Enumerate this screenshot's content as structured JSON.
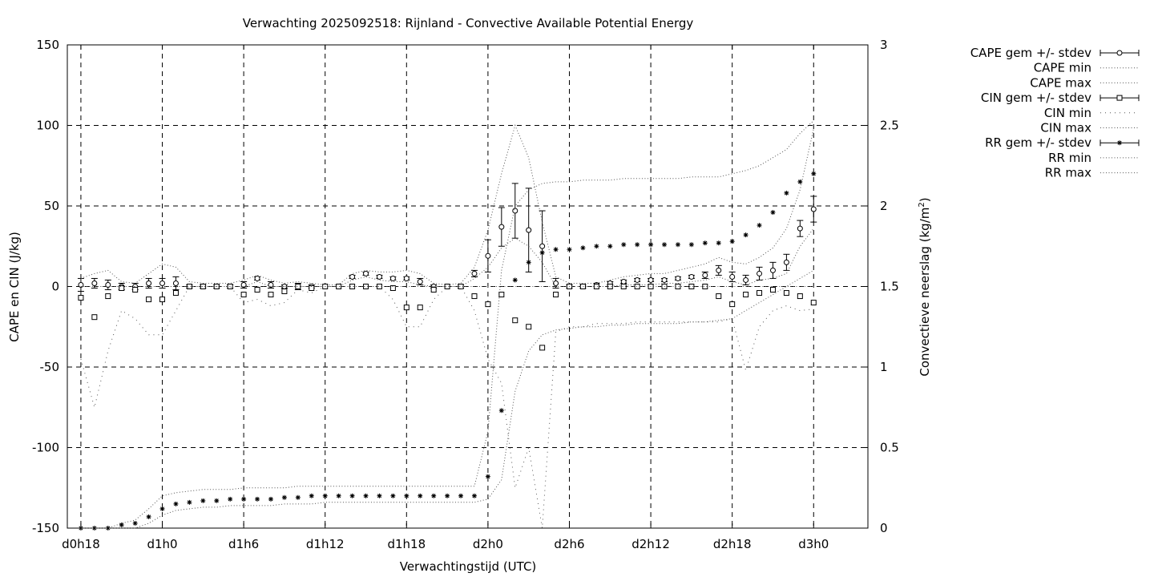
{
  "chart_data": {
    "type": "line",
    "title": "Verwachting 2025092518: Rijnland - Convective Available Potential Energy",
    "xlabel": "Verwachtingstijd (UTC)",
    "ylabel": "CAPE en CIN (J/kg)",
    "y2label_main": "Convectieve neerslag (kg/m",
    "y2label_sup": "2",
    "y2label_end": ")",
    "x_range_hours": [
      -1,
      58
    ],
    "x_ticks": [
      {
        "hour": 0,
        "label": "d0h18"
      },
      {
        "hour": 6,
        "label": "d1h0"
      },
      {
        "hour": 12,
        "label": "d1h6"
      },
      {
        "hour": 18,
        "label": "d1h12"
      },
      {
        "hour": 24,
        "label": "d1h18"
      },
      {
        "hour": 30,
        "label": "d2h0"
      },
      {
        "hour": 36,
        "label": "d2h6"
      },
      {
        "hour": 42,
        "label": "d2h12"
      },
      {
        "hour": 48,
        "label": "d2h18"
      },
      {
        "hour": 54,
        "label": "d3h0"
      }
    ],
    "ylim": [
      -150,
      150
    ],
    "y_ticks": [
      {
        "value": 150,
        "label": "150"
      },
      {
        "value": 100,
        "label": "100"
      },
      {
        "value": 50,
        "label": "50"
      },
      {
        "value": 0,
        "label": "0"
      },
      {
        "value": -50,
        "label": "-50"
      },
      {
        "value": -100,
        "label": "-100"
      },
      {
        "value": -150,
        "label": "-150"
      }
    ],
    "y2lim": [
      0,
      3
    ],
    "y2_ticks": [
      {
        "value": 3,
        "label": "3"
      },
      {
        "value": 2.5,
        "label": "2.5"
      },
      {
        "value": 2,
        "label": "2"
      },
      {
        "value": 1.5,
        "label": "1.5"
      },
      {
        "value": 1,
        "label": "1"
      },
      {
        "value": 0.5,
        "label": "0.5"
      },
      {
        "value": 0,
        "label": "0"
      }
    ],
    "grid": true,
    "legend_position": "outside top-right",
    "legend": [
      {
        "label": "CAPE gem +/- stdev",
        "marker": "circle",
        "style": "errorbar"
      },
      {
        "label": "CAPE min",
        "marker": "none",
        "style": "dotted"
      },
      {
        "label": "CAPE max",
        "marker": "none",
        "style": "dotted"
      },
      {
        "label": "CIN gem +/- stdev",
        "marker": "square",
        "style": "errorbar"
      },
      {
        "label": "CIN min",
        "marker": "none",
        "style": "sparse-dotted"
      },
      {
        "label": "CIN max",
        "marker": "none",
        "style": "dotted"
      },
      {
        "label": "RR gem +/- stdev",
        "marker": "star",
        "style": "errorbar"
      },
      {
        "label": "RR min",
        "marker": "none",
        "style": "dotted"
      },
      {
        "label": "RR max",
        "marker": "none",
        "style": "dotted"
      }
    ],
    "x_hours": [
      0,
      1,
      2,
      3,
      4,
      5,
      6,
      7,
      8,
      9,
      10,
      11,
      12,
      13,
      14,
      15,
      16,
      17,
      18,
      19,
      20,
      21,
      22,
      23,
      24,
      25,
      26,
      27,
      28,
      29,
      30,
      31,
      32,
      33,
      34,
      35,
      36,
      37,
      38,
      39,
      40,
      41,
      42,
      43,
      44,
      45,
      46,
      47,
      48,
      49,
      50,
      51,
      52,
      53,
      54
    ],
    "series": [
      {
        "name": "CAPE gem +/- stdev",
        "axis": "left",
        "marker": "circle",
        "values": [
          1,
          2,
          1,
          0,
          0,
          2,
          2,
          2,
          0,
          0,
          0,
          0,
          1,
          5,
          1,
          0,
          0,
          0,
          0,
          0,
          6,
          8,
          6,
          5,
          5,
          3,
          0,
          0,
          0,
          8,
          19,
          37,
          47,
          35,
          25,
          2,
          0,
          0,
          1,
          2,
          3,
          4,
          4,
          4,
          5,
          6,
          7,
          10,
          6,
          4,
          8,
          10,
          15,
          36,
          48
        ],
        "stdev": [
          4,
          3,
          3,
          2,
          2,
          3,
          3,
          4,
          1,
          1,
          1,
          1,
          2,
          1,
          2,
          1,
          2,
          1,
          0,
          0,
          1,
          1,
          1,
          1,
          1,
          2,
          1,
          0,
          1,
          2,
          10,
          12,
          17,
          26,
          22,
          3,
          1,
          1,
          1,
          1,
          1,
          1,
          1,
          1,
          1,
          1,
          2,
          3,
          3,
          3,
          4,
          5,
          5,
          5,
          8
        ]
      },
      {
        "name": "CAPE min",
        "axis": "left",
        "style": "dotted",
        "values": [
          0,
          0,
          0,
          0,
          0,
          0,
          0,
          0,
          0,
          0,
          0,
          0,
          0,
          3,
          0,
          0,
          0,
          0,
          0,
          0,
          4,
          6,
          4,
          3,
          3,
          1,
          0,
          0,
          0,
          5,
          12,
          24,
          30,
          25,
          15,
          0,
          0,
          0,
          0,
          0,
          1,
          1,
          1,
          2,
          2,
          3,
          4,
          6,
          3,
          1,
          4,
          5,
          8,
          25,
          36
        ]
      },
      {
        "name": "CAPE max",
        "axis": "left",
        "style": "dotted",
        "values": [
          5,
          8,
          10,
          3,
          2,
          8,
          14,
          12,
          3,
          2,
          2,
          2,
          4,
          7,
          4,
          2,
          3,
          2,
          1,
          1,
          8,
          10,
          9,
          9,
          10,
          8,
          2,
          1,
          2,
          12,
          35,
          70,
          100,
          80,
          40,
          6,
          2,
          2,
          2,
          4,
          6,
          7,
          8,
          8,
          10,
          12,
          14,
          18,
          15,
          14,
          18,
          24,
          36,
          60,
          98
        ]
      },
      {
        "name": "CIN gem +/- stdev",
        "axis": "left",
        "marker": "square",
        "values": [
          -7,
          -19,
          -6,
          -1,
          -2,
          -8,
          -8,
          -4,
          0,
          0,
          0,
          0,
          -5,
          -2,
          -5,
          -3,
          0,
          -1,
          0,
          0,
          0,
          0,
          0,
          -1,
          -13,
          -13,
          -2,
          0,
          0,
          -6,
          -11,
          -5,
          -21,
          -25,
          -38,
          -5,
          0,
          0,
          0,
          0,
          0,
          0,
          0,
          0,
          0,
          0,
          0,
          -6,
          -11,
          -5,
          -4,
          -2,
          -4,
          -6,
          -10
        ]
      },
      {
        "name": "CIN min",
        "axis": "left",
        "style": "sparse-dotted",
        "values": [
          -45,
          -75,
          -40,
          -15,
          -20,
          -30,
          -30,
          -15,
          0,
          0,
          0,
          0,
          -10,
          -8,
          -12,
          -10,
          -2,
          -4,
          0,
          0,
          0,
          0,
          0,
          -8,
          -25,
          -25,
          -8,
          0,
          0,
          -15,
          -45,
          -60,
          -125,
          -100,
          -150,
          -28,
          -25,
          -25,
          -23,
          -23,
          -23,
          -22,
          -22,
          -22,
          -22,
          -22,
          -22,
          -22,
          -20,
          -52,
          -25,
          -15,
          -12,
          -15,
          -14
        ]
      },
      {
        "name": "CIN max",
        "axis": "left",
        "style": "dotted",
        "values": [
          0,
          0,
          0,
          0,
          0,
          0,
          0,
          0,
          0,
          0,
          0,
          0,
          0,
          0,
          0,
          0,
          0,
          0,
          0,
          0,
          0,
          0,
          0,
          0,
          0,
          0,
          0,
          0,
          0,
          0,
          0,
          0,
          0,
          0,
          0,
          0,
          0,
          0,
          0,
          0,
          0,
          0,
          0,
          0,
          0,
          0,
          0,
          0,
          0,
          0,
          0,
          0,
          0,
          0,
          0
        ]
      },
      {
        "name": "RR gem +/- stdev",
        "axis": "right",
        "marker": "star",
        "values": [
          0,
          0,
          0,
          0.02,
          0.03,
          0.07,
          0.12,
          0.15,
          0.16,
          0.17,
          0.17,
          0.18,
          0.18,
          0.18,
          0.18,
          0.19,
          0.19,
          0.2,
          0.2,
          0.2,
          0.2,
          0.2,
          0.2,
          0.2,
          0.2,
          0.2,
          0.2,
          0.2,
          0.2,
          0.2,
          0.32,
          0.73,
          1.54,
          1.65,
          1.71,
          1.73,
          1.73,
          1.74,
          1.75,
          1.75,
          1.76,
          1.76,
          1.76,
          1.76,
          1.76,
          1.76,
          1.77,
          1.77,
          1.78,
          1.82,
          1.88,
          1.96,
          2.08,
          2.15,
          2.2
        ]
      },
      {
        "name": "RR min",
        "axis": "right",
        "style": "dotted",
        "values": [
          0,
          0,
          0,
          0,
          0,
          0.03,
          0.08,
          0.11,
          0.12,
          0.13,
          0.13,
          0.14,
          0.14,
          0.14,
          0.14,
          0.15,
          0.15,
          0.15,
          0.16,
          0.16,
          0.16,
          0.16,
          0.16,
          0.16,
          0.16,
          0.16,
          0.16,
          0.16,
          0.16,
          0.16,
          0.18,
          0.3,
          0.85,
          1.1,
          1.2,
          1.23,
          1.24,
          1.25,
          1.25,
          1.26,
          1.26,
          1.27,
          1.27,
          1.27,
          1.27,
          1.28,
          1.28,
          1.29,
          1.3,
          1.35,
          1.4,
          1.45,
          1.5,
          1.55,
          1.6
        ]
      },
      {
        "name": "RR max",
        "axis": "right",
        "style": "dotted",
        "values": [
          0,
          0,
          0,
          0.03,
          0.05,
          0.12,
          0.2,
          0.22,
          0.23,
          0.24,
          0.24,
          0.24,
          0.25,
          0.25,
          0.25,
          0.25,
          0.26,
          0.26,
          0.26,
          0.26,
          0.26,
          0.26,
          0.26,
          0.26,
          0.26,
          0.26,
          0.26,
          0.26,
          0.26,
          0.26,
          0.6,
          1.6,
          2.0,
          2.1,
          2.14,
          2.15,
          2.15,
          2.16,
          2.16,
          2.16,
          2.17,
          2.17,
          2.17,
          2.17,
          2.17,
          2.18,
          2.18,
          2.18,
          2.2,
          2.22,
          2.25,
          2.3,
          2.35,
          2.45,
          2.53
        ]
      }
    ]
  }
}
